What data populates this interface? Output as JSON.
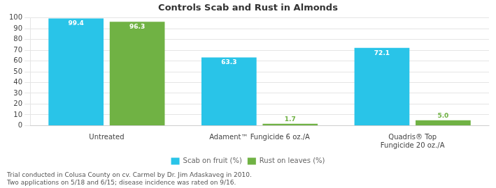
{
  "chart_data": {
    "type": "bar",
    "title": "Controls Scab and Rust in Almonds",
    "categories": [
      "Untreated",
      "Adament™ Fungicide 6 oz./A",
      "Quadris® Top\nFungicide 20 oz./A"
    ],
    "series": [
      {
        "name": "Scab on fruit (%)",
        "color": "#29C4E8",
        "values": [
          99.4,
          63.3,
          72.1
        ],
        "value_labels": [
          "99.4",
          "63.3",
          "72.1"
        ]
      },
      {
        "name": "Rust on leaves (%)",
        "color": "#70B244",
        "values": [
          96.3,
          1.7,
          5.0
        ],
        "value_labels": [
          "96.3",
          "1.7",
          "5.0"
        ]
      }
    ],
    "ylim": [
      0,
      100
    ],
    "yticks": [
      0,
      10,
      20,
      30,
      40,
      50,
      60,
      70,
      80,
      90,
      100
    ],
    "grid": true,
    "legend": "bottom",
    "data_labels": true,
    "annotations": [
      "Trial conducted in Colusa County on cv. Carmel by Dr. Jim Adaskaveg in 2010.",
      "Two applications on 5/18 and 6/15; disease incidence was rated on 9/16."
    ]
  }
}
